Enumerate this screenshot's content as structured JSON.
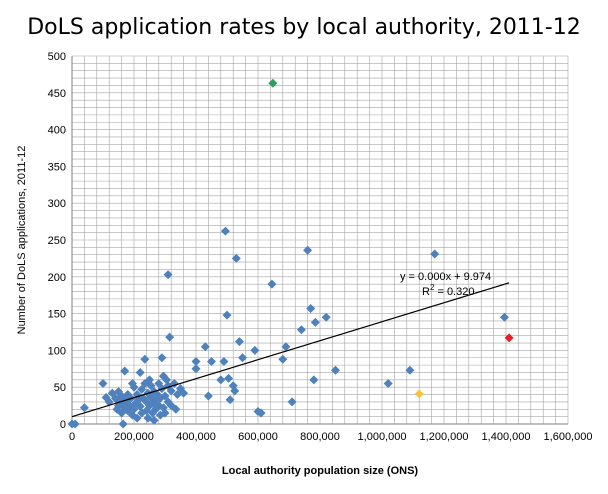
{
  "chart_data": {
    "type": "scatter",
    "title": "DoLS application rates by local authority, 2011-12",
    "xlabel": "Local authority population size (ONS)",
    "ylabel": "Number of DoLS applications, 2011-12",
    "xlim": [
      0,
      1600000
    ],
    "ylim": [
      0,
      500
    ],
    "x_ticks": [
      "0",
      "200,000",
      "400,000",
      "600,000",
      "800,000",
      "1,000,000",
      "1,200,000",
      "1,400,000",
      "1,600,000"
    ],
    "y_ticks": [
      "0",
      "50",
      "100",
      "150",
      "200",
      "250",
      "300",
      "350",
      "400",
      "450",
      "500"
    ],
    "grid": true,
    "trendline": {
      "equation_text": "y = 0.000x + 9.974",
      "r2_prefix": "R",
      "r2_exp": "2",
      "r2_suffix": " = 0.320",
      "slope": 0.000129,
      "intercept": 9.974,
      "x_start": 0,
      "x_end": 1410000
    },
    "colors": {
      "main": "#4F81BD",
      "highlight_green": "#2E9E5B",
      "highlight_red": "#E8202A",
      "highlight_yellow": "#F5C242",
      "grid": "#A6A6A6"
    },
    "highlights": [
      {
        "x": 648000,
        "y": 463,
        "color": "highlight_green"
      },
      {
        "x": 1410000,
        "y": 117,
        "color": "highlight_red"
      },
      {
        "x": 1120000,
        "y": 41,
        "color": "highlight_yellow"
      }
    ],
    "points": [
      [
        0,
        0
      ],
      [
        10000,
        0
      ],
      [
        40000,
        22
      ],
      [
        100000,
        55
      ],
      [
        110000,
        36
      ],
      [
        120000,
        30
      ],
      [
        130000,
        42
      ],
      [
        140000,
        35
      ],
      [
        145000,
        20
      ],
      [
        150000,
        25
      ],
      [
        150000,
        44
      ],
      [
        155000,
        30
      ],
      [
        160000,
        15
      ],
      [
        160000,
        38
      ],
      [
        165000,
        0
      ],
      [
        165000,
        28
      ],
      [
        170000,
        22
      ],
      [
        170000,
        72
      ],
      [
        175000,
        33
      ],
      [
        180000,
        18
      ],
      [
        180000,
        40
      ],
      [
        185000,
        25
      ],
      [
        190000,
        35
      ],
      [
        195000,
        12
      ],
      [
        195000,
        55
      ],
      [
        200000,
        20
      ],
      [
        200000,
        50
      ],
      [
        205000,
        28
      ],
      [
        210000,
        40
      ],
      [
        210000,
        8
      ],
      [
        215000,
        33
      ],
      [
        220000,
        24
      ],
      [
        220000,
        70
      ],
      [
        225000,
        15
      ],
      [
        225000,
        47
      ],
      [
        230000,
        35
      ],
      [
        235000,
        55
      ],
      [
        235000,
        88
      ],
      [
        240000,
        18
      ],
      [
        240000,
        30
      ],
      [
        245000,
        42
      ],
      [
        245000,
        8
      ],
      [
        250000,
        60
      ],
      [
        250000,
        25
      ],
      [
        255000,
        36
      ],
      [
        255000,
        52
      ],
      [
        260000,
        15
      ],
      [
        260000,
        28
      ],
      [
        265000,
        44
      ],
      [
        265000,
        5
      ],
      [
        270000,
        33
      ],
      [
        270000,
        20
      ],
      [
        275000,
        40
      ],
      [
        280000,
        25
      ],
      [
        280000,
        55
      ],
      [
        285000,
        12
      ],
      [
        285000,
        35
      ],
      [
        290000,
        48
      ],
      [
        290000,
        90
      ],
      [
        295000,
        22
      ],
      [
        295000,
        65
      ],
      [
        300000,
        38
      ],
      [
        300000,
        15
      ],
      [
        305000,
        60
      ],
      [
        310000,
        30
      ],
      [
        310000,
        52
      ],
      [
        315000,
        118
      ],
      [
        320000,
        45
      ],
      [
        320000,
        25
      ],
      [
        330000,
        55
      ],
      [
        335000,
        20
      ],
      [
        340000,
        40
      ],
      [
        350000,
        48
      ],
      [
        360000,
        42
      ],
      [
        310000,
        203
      ],
      [
        400000,
        85
      ],
      [
        400000,
        75
      ],
      [
        430000,
        105
      ],
      [
        440000,
        38
      ],
      [
        450000,
        85
      ],
      [
        480000,
        60
      ],
      [
        490000,
        85
      ],
      [
        495000,
        262
      ],
      [
        500000,
        148
      ],
      [
        505000,
        62
      ],
      [
        510000,
        33
      ],
      [
        520000,
        52
      ],
      [
        525000,
        45
      ],
      [
        530000,
        225
      ],
      [
        540000,
        112
      ],
      [
        550000,
        90
      ],
      [
        590000,
        100
      ],
      [
        600000,
        17
      ],
      [
        610000,
        15
      ],
      [
        645000,
        190
      ],
      [
        680000,
        88
      ],
      [
        690000,
        105
      ],
      [
        710000,
        30
      ],
      [
        740000,
        128
      ],
      [
        760000,
        236
      ],
      [
        770000,
        157
      ],
      [
        780000,
        60
      ],
      [
        785000,
        138
      ],
      [
        820000,
        145
      ],
      [
        850000,
        73
      ],
      [
        1020000,
        55
      ],
      [
        1090000,
        73
      ],
      [
        1170000,
        231
      ],
      [
        1395000,
        145
      ]
    ]
  }
}
